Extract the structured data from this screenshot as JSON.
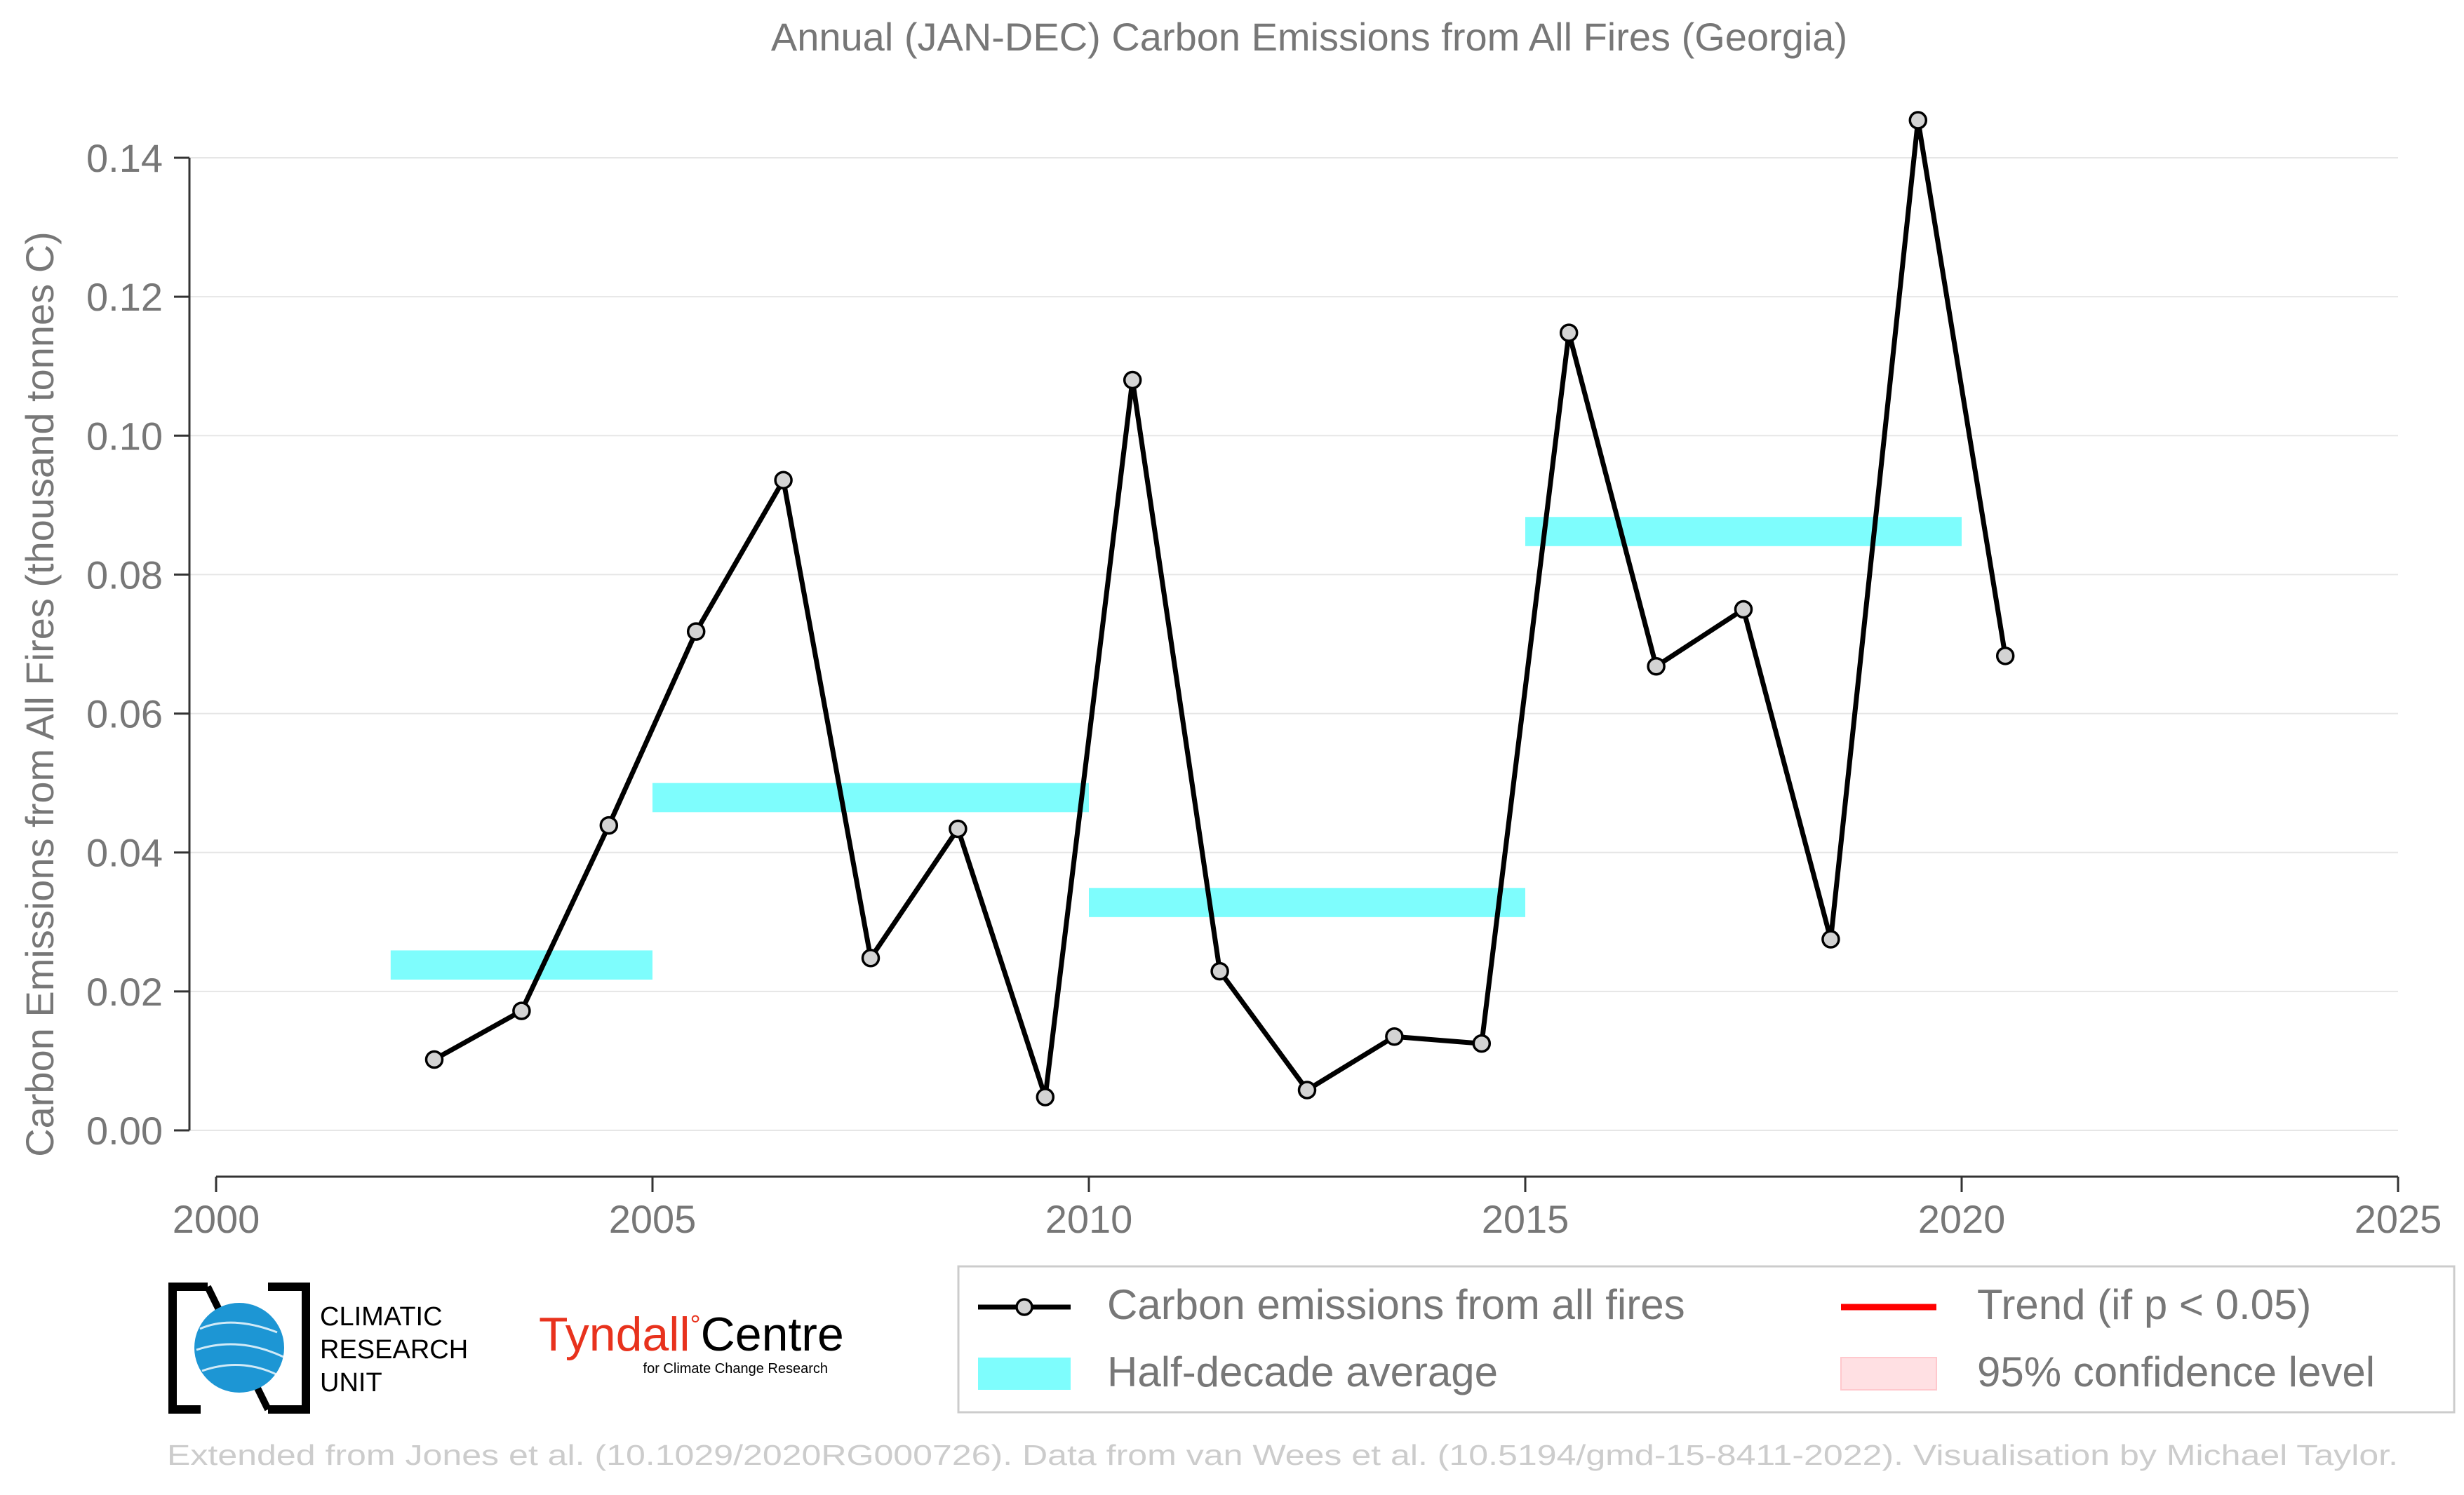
{
  "chart_data": {
    "type": "line",
    "title": "Annual (JAN-DEC) Carbon Emissions from All Fires (Georgia)",
    "xlabel": "",
    "ylabel": "Carbon Emissions from All Fires (thousand tonnes C)",
    "xlim": [
      2000,
      2025
    ],
    "ylim": [
      0.0,
      0.14
    ],
    "xticks": [
      2000,
      2005,
      2010,
      2015,
      2020,
      2025
    ],
    "xtick_labels": [
      "2000",
      "2005",
      "2010",
      "2015",
      "2020",
      "2025"
    ],
    "yticks": [
      0.0,
      0.02,
      0.04,
      0.06,
      0.08,
      0.1,
      0.12,
      0.14
    ],
    "ytick_labels": [
      "0.00",
      "0.02",
      "0.04",
      "0.06",
      "0.08",
      "0.10",
      "0.12",
      "0.14"
    ],
    "grid": "horizontal",
    "series": [
      {
        "name": "Carbon emissions from all fires",
        "color": "#000000",
        "marker_fill": "#d3d3d3",
        "x": [
          2002.5,
          2003.5,
          2004.5,
          2005.5,
          2006.5,
          2007.5,
          2008.5,
          2009.5,
          2010.5,
          2011.5,
          2012.5,
          2013.5,
          2014.5,
          2015.5,
          2016.5,
          2017.5,
          2018.5,
          2019.5,
          2020.5
        ],
        "y": [
          0.0102,
          0.0172,
          0.0439,
          0.0718,
          0.0936,
          0.0248,
          0.0434,
          0.0048,
          0.108,
          0.0229,
          0.0058,
          0.0135,
          0.0125,
          0.1148,
          0.0668,
          0.075,
          0.0275,
          0.1454,
          0.0683
        ]
      },
      {
        "name": "Half-decade average",
        "type": "step",
        "color": "#7efdfd",
        "x_start": [
          2002,
          2005,
          2010,
          2015
        ],
        "x_end": [
          2005,
          2010,
          2015,
          2020
        ],
        "y": [
          0.0238,
          0.0479,
          0.0328,
          0.0862
        ]
      }
    ],
    "legend": {
      "placement": "bottom-right",
      "entries": [
        {
          "label": "Carbon emissions from all fires",
          "symbol": "line-marker",
          "color": "#000000"
        },
        {
          "label": "Half-decade average",
          "symbol": "patch",
          "color": "#7efdfd"
        },
        {
          "label": "Trend (if p < 0.05)",
          "symbol": "line",
          "color": "#ff0000"
        },
        {
          "label": "95% confidence level",
          "symbol": "patch",
          "color": "#ffe0e3"
        }
      ]
    },
    "credit": "Extended from Jones et al. (10.1029/2020RG000726). Data from van Wees et al. (10.5194/gmd-15-8411-2022). Visualisation by Michael Taylor."
  },
  "logos": {
    "cru": {
      "lines": [
        "CLIMATIC",
        "RESEARCH",
        "UNIT"
      ]
    },
    "tyndall": {
      "name_a": "Tyndall",
      "degree": "°",
      "name_b": "Centre",
      "subline": "for Climate Change Research",
      "color": "#e8321d"
    }
  },
  "colors": {
    "text": "#777777",
    "axis": "#333333",
    "grid": "#e6e6e6",
    "credit": "#cccccc"
  }
}
